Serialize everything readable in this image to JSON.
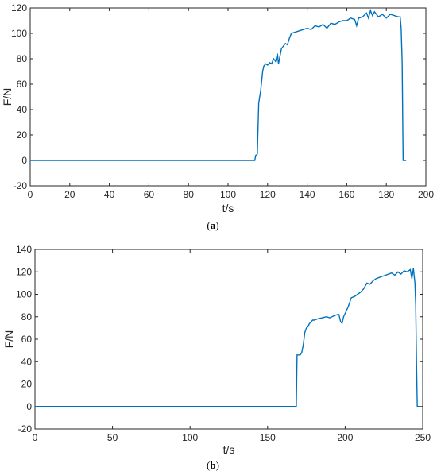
{
  "figure": {
    "captions": [
      "(a)",
      "(b)"
    ],
    "caption_letters": [
      "a",
      "b"
    ]
  },
  "colors": {
    "line": "#0072bd",
    "axis": "#262626",
    "background": "#ffffff"
  },
  "chart_data": [
    {
      "type": "line",
      "xlabel": "t/s",
      "ylabel": "F/N",
      "xlim": [
        0,
        200
      ],
      "ylim": [
        -20,
        120
      ],
      "xticks": [
        0,
        20,
        40,
        60,
        80,
        100,
        120,
        140,
        160,
        180,
        200
      ],
      "yticks": [
        -20,
        0,
        20,
        40,
        60,
        80,
        100,
        120
      ],
      "grid": false,
      "series": [
        {
          "x": [
            0,
            112,
            113.5,
            114,
            114.2,
            114.8,
            115.5,
            116.5,
            117.5,
            118,
            119,
            120,
            121,
            122,
            123,
            124,
            125,
            125.5,
            126,
            127,
            128,
            129,
            130,
            131,
            132,
            134,
            136,
            138,
            140,
            142,
            144,
            146,
            148,
            150,
            152,
            154,
            156,
            158,
            160,
            162,
            164,
            165,
            166,
            168,
            170,
            171,
            172,
            173,
            174,
            176,
            178,
            180,
            182,
            184,
            186,
            187,
            187.5,
            188,
            188.5,
            189,
            190
          ],
          "y": [
            0,
            0,
            0,
            4,
            4,
            5,
            45,
            55,
            70,
            74,
            76,
            75,
            77,
            76,
            80,
            78,
            84,
            76,
            80,
            88,
            90,
            92,
            91,
            96,
            100,
            101,
            102,
            103,
            104,
            103,
            106,
            105,
            107,
            104,
            108,
            107,
            109,
            110,
            110,
            112,
            111,
            106,
            112,
            113,
            116,
            112,
            118,
            114,
            117,
            113,
            115,
            112,
            115,
            114,
            113,
            113,
            104,
            78,
            0,
            0,
            0
          ]
        }
      ]
    },
    {
      "type": "line",
      "xlabel": "t/s",
      "ylabel": "F/N",
      "xlim": [
        0,
        250
      ],
      "ylim": [
        -20,
        140
      ],
      "xticks": [
        0,
        50,
        100,
        150,
        200,
        250
      ],
      "yticks": [
        -20,
        0,
        20,
        40,
        60,
        80,
        100,
        120,
        140
      ],
      "grid": false,
      "series": [
        {
          "x": [
            0,
            168.5,
            169,
            169.5,
            171,
            172,
            173,
            174,
            175,
            176,
            177,
            178,
            179,
            180,
            182,
            185,
            188,
            190,
            193,
            195,
            196,
            197,
            198,
            199,
            200,
            201,
            202,
            203,
            204,
            206,
            208,
            210,
            212,
            214,
            216,
            218,
            220,
            222,
            224,
            226,
            228,
            230,
            232,
            234,
            236,
            238,
            240,
            242,
            243,
            244,
            245,
            245.5,
            246,
            246.5,
            247,
            248
          ],
          "y": [
            0,
            0,
            46,
            46,
            46,
            48,
            55,
            66,
            70,
            71,
            74,
            75,
            77,
            77,
            78,
            79,
            80,
            79,
            81,
            82,
            82,
            76,
            74,
            80,
            83,
            86,
            89,
            93,
            97,
            98,
            100,
            102,
            105,
            110,
            109,
            112,
            114,
            115,
            116,
            117,
            118,
            119,
            117,
            120,
            118,
            121,
            120,
            122,
            114,
            123,
            110,
            90,
            40,
            0,
            0,
            0
          ]
        }
      ]
    }
  ]
}
